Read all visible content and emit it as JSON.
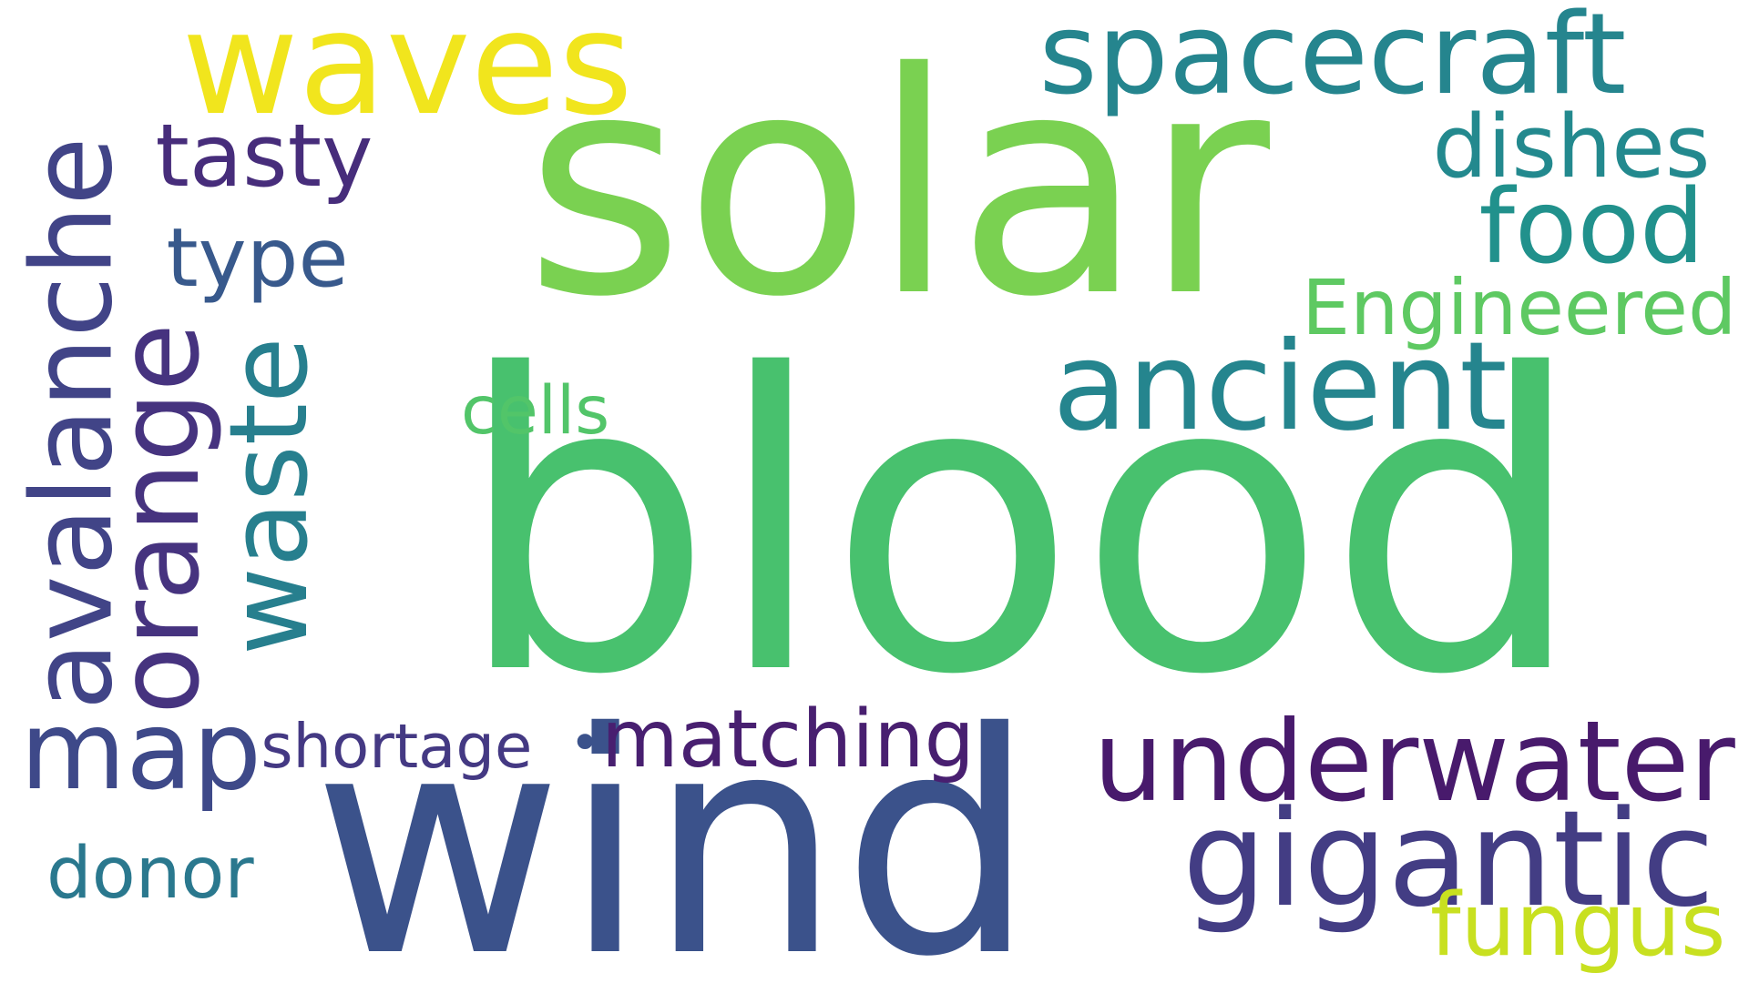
{
  "words": [
    {
      "id": "blood",
      "text": "blood",
      "color": "#48c16e",
      "orientation": "horizontal"
    },
    {
      "id": "solar",
      "text": "solar",
      "color": "#7ad151",
      "orientation": "horizontal"
    },
    {
      "id": "wind",
      "text": "wind",
      "color": "#3b528b",
      "orientation": "horizontal"
    },
    {
      "id": "waves",
      "text": "waves",
      "color": "#f1e51d",
      "orientation": "horizontal"
    },
    {
      "id": "spacecraft",
      "text": "spacecraft",
      "color": "#25858e",
      "orientation": "horizontal"
    },
    {
      "id": "ancient",
      "text": "ancient",
      "color": "#25858e",
      "orientation": "horizontal"
    },
    {
      "id": "underwater",
      "text": "underwater",
      "color": "#481a6c",
      "orientation": "horizontal"
    },
    {
      "id": "gigantic",
      "text": "gigantic",
      "color": "#433d84",
      "orientation": "horizontal"
    },
    {
      "id": "map",
      "text": "map",
      "color": "#3e4989",
      "orientation": "horizontal"
    },
    {
      "id": "avalanche",
      "text": "avalanche",
      "color": "#414487",
      "orientation": "vertical"
    },
    {
      "id": "orange",
      "text": "orange",
      "color": "#46337f",
      "orientation": "vertical"
    },
    {
      "id": "waste",
      "text": "waste",
      "color": "#277f8e",
      "orientation": "vertical"
    },
    {
      "id": "food",
      "text": "food",
      "color": "#21918c",
      "orientation": "horizontal"
    },
    {
      "id": "dishes",
      "text": "dishes",
      "color": "#23898e",
      "orientation": "horizontal"
    },
    {
      "id": "tasty",
      "text": "tasty",
      "color": "#472d7b",
      "orientation": "horizontal"
    },
    {
      "id": "type",
      "text": "type",
      "color": "#38598c",
      "orientation": "horizontal"
    },
    {
      "id": "engineered",
      "text": "Engineered",
      "color": "#5ec962",
      "orientation": "horizontal"
    },
    {
      "id": "matching",
      "text": "matching",
      "color": "#481f70",
      "orientation": "horizontal"
    },
    {
      "id": "shortage",
      "text": "shortage",
      "color": "#443983",
      "orientation": "horizontal"
    },
    {
      "id": "fungus",
      "text": "fungus",
      "color": "#c8e020",
      "orientation": "horizontal"
    },
    {
      "id": "cells",
      "text": "cells",
      "color": "#52c569",
      "orientation": "horizontal"
    },
    {
      "id": "donor",
      "text": "donor",
      "color": "#2a788e",
      "orientation": "horizontal"
    },
    {
      "id": "dot",
      "text": "•",
      "color": "#3b528b",
      "orientation": "horizontal"
    }
  ]
}
